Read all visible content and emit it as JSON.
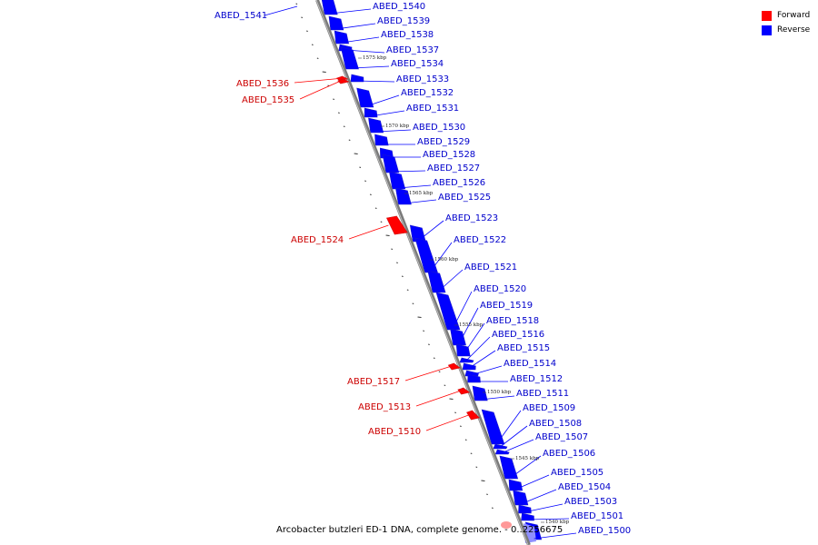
{
  "legend": {
    "forward_label": "Forward",
    "reverse_label": "Reverse",
    "forward_color": "#ff0000",
    "reverse_color": "#0000ff"
  },
  "caption": "Arcobacter butzleri ED-1 DNA, complete genome. - 0..2256675",
  "scale": {
    "unit": "kbp",
    "ticks": [
      "1575 kbp",
      "1570 kbp",
      "1565 kbp",
      "1560 kbp",
      "1555 kbp",
      "1550 kbp",
      "1545 kbp",
      "1540 kbp"
    ]
  },
  "forward_genes": [
    "ABED_1536",
    "ABED_1535",
    "ABED_1524",
    "ABED_1517",
    "ABED_1513",
    "ABED_1510"
  ],
  "reverse_genes": [
    "ABED_1541",
    "ABED_1540",
    "ABED_1539",
    "ABED_1538",
    "ABED_1537",
    "ABED_1534",
    "ABED_1533",
    "ABED_1532",
    "ABED_1531",
    "ABED_1530",
    "ABED_1529",
    "ABED_1528",
    "ABED_1527",
    "ABED_1526",
    "ABED_1525",
    "ABED_1523",
    "ABED_1522",
    "ABED_1521",
    "ABED_1520",
    "ABED_1519",
    "ABED_1518",
    "ABED_1516",
    "ABED_1515",
    "ABED_1514",
    "ABED_1512",
    "ABED_1511",
    "ABED_1509",
    "ABED_1508",
    "ABED_1507",
    "ABED_1506",
    "ABED_1505",
    "ABED_1504",
    "ABED_1503",
    "ABED_1501",
    "ABED_1500"
  ]
}
